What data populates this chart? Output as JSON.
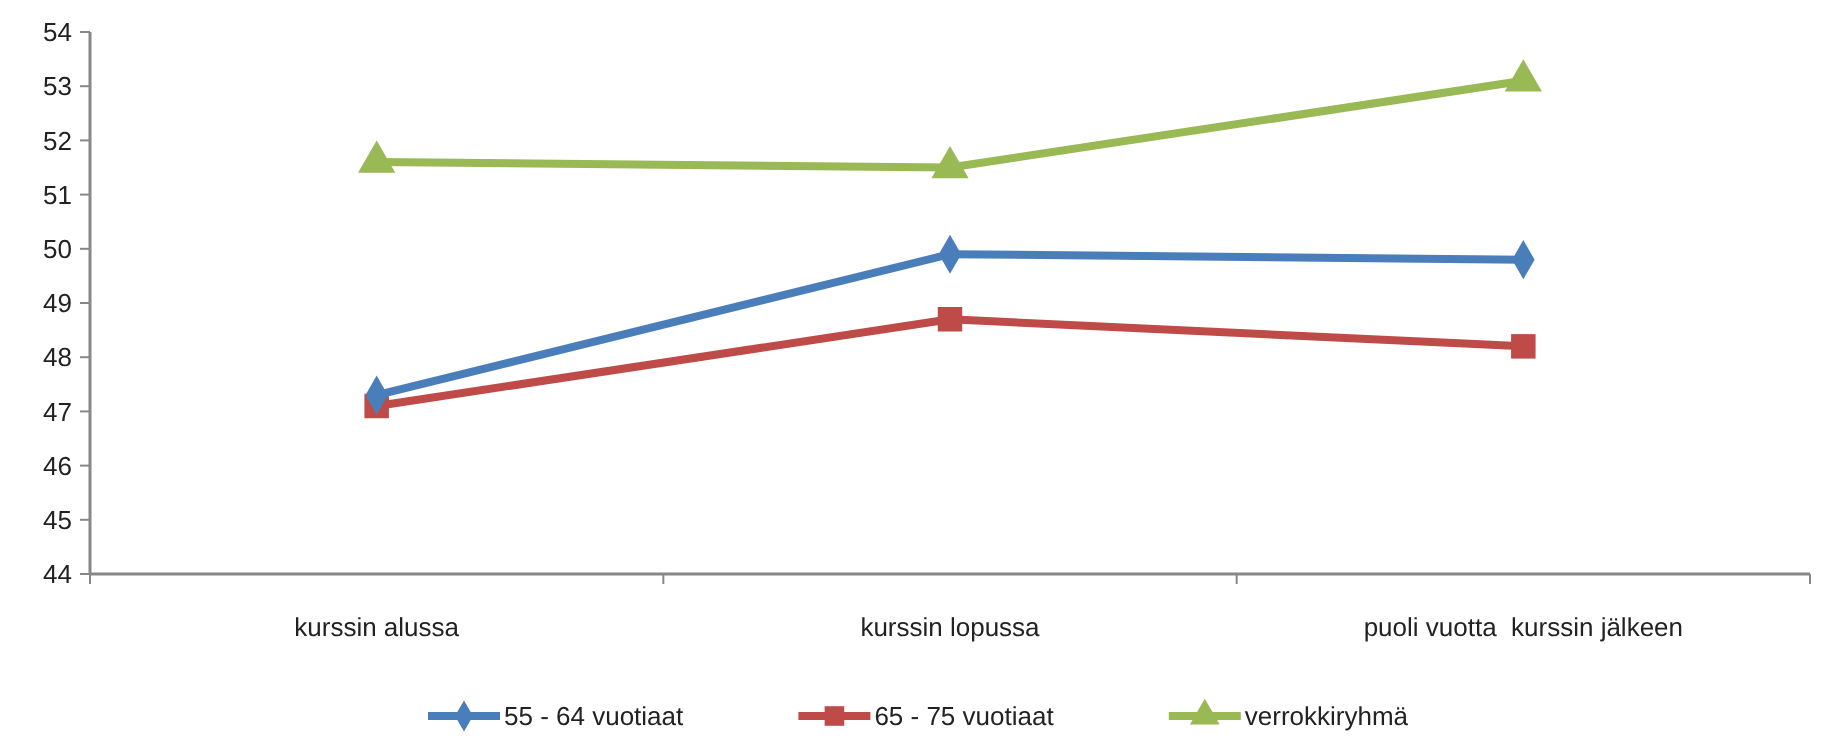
{
  "chart_data": {
    "type": "line",
    "categories": [
      "kurssin alussa",
      "kurssin lopussa",
      "puoli vuotta  kurssin jälkeen"
    ],
    "series": [
      {
        "name": "55 - 64 vuotiaat",
        "color": "#4a7ebb",
        "marker": "diamond",
        "values": [
          47.3,
          49.9,
          49.8
        ]
      },
      {
        "name": "65 - 75 vuotiaat",
        "color": "#be4b48",
        "marker": "square",
        "values": [
          47.1,
          48.7,
          48.2
        ]
      },
      {
        "name": "verrokkiryhmä",
        "color": "#98b954",
        "marker": "triangle",
        "values": [
          51.6,
          51.5,
          53.1
        ]
      }
    ],
    "ylim": [
      44,
      54
    ],
    "yticks": [
      44,
      45,
      46,
      47,
      48,
      49,
      50,
      51,
      52,
      53,
      54
    ],
    "grid": false,
    "legend": "bottom",
    "line_style": "solid"
  }
}
